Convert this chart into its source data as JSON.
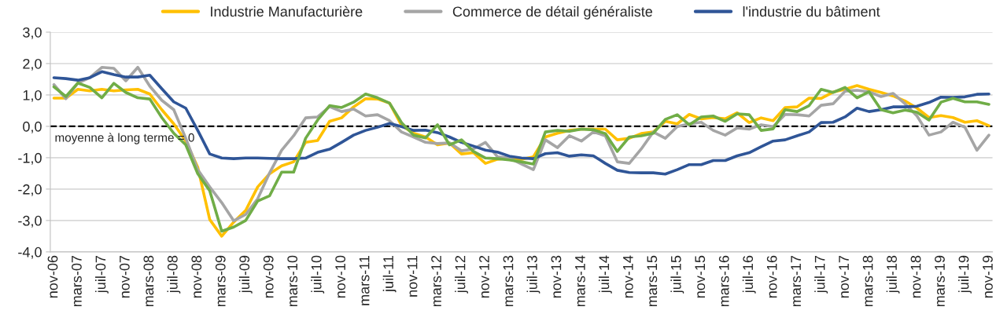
{
  "chart_data": {
    "type": "line",
    "categories": [
      "nov-06",
      null,
      "mars-07",
      null,
      "juil-07",
      null,
      "nov-07",
      null,
      "mars-08",
      null,
      "juil-08",
      null,
      "nov-08",
      null,
      "mars-09",
      null,
      "juil-09",
      null,
      "nov-09",
      null,
      "mars-10",
      null,
      "juil-10",
      null,
      "nov-10",
      null,
      "mars-11",
      null,
      "juil-11",
      null,
      "nov-11",
      null,
      "mars-12",
      null,
      "juil-12",
      null,
      "nov-12",
      null,
      "mars-13",
      null,
      "juil-13",
      null,
      "nov-13",
      null,
      "mars-14",
      null,
      "juil-14",
      null,
      "nov-14",
      null,
      "mars-15",
      null,
      "juil-15",
      null,
      "nov-15",
      null,
      "mars-16",
      null,
      "juil-16",
      null,
      "nov-16",
      null,
      "mars-17",
      null,
      "juil-17",
      null,
      "nov-17",
      null,
      "mars-18",
      null,
      "juil-18",
      null,
      "nov-18",
      null,
      "mars-19",
      null,
      "juil-19",
      null,
      "nov-19"
    ],
    "series": [
      {
        "name": "Industrie Manufacturière",
        "color": "#ffc000",
        "values": [
          0.9,
          0.9,
          1.18,
          1.13,
          1.18,
          1.13,
          1.16,
          1.18,
          1.03,
          0.53,
          0.08,
          -0.47,
          -1.3,
          -2.97,
          -3.5,
          -3.05,
          -2.68,
          -1.93,
          -1.51,
          -1.26,
          -1.13,
          -0.51,
          -0.45,
          0.16,
          0.27,
          0.62,
          0.88,
          0.87,
          0.74,
          0.03,
          -0.22,
          -0.34,
          -0.59,
          -0.53,
          -0.88,
          -0.84,
          -1.18,
          -1.05,
          -1.01,
          -1.05,
          -0.97,
          -0.34,
          -0.22,
          -0.13,
          -0.09,
          -0.09,
          -0.09,
          -0.43,
          -0.38,
          -0.23,
          -0.18,
          0.16,
          0.08,
          0.38,
          0.24,
          0.28,
          0.24,
          0.43,
          0.12,
          0.27,
          0.18,
          0.6,
          0.62,
          0.9,
          0.89,
          1.09,
          1.18,
          1.3,
          1.18,
          1.08,
          0.97,
          0.81,
          0.58,
          0.28,
          0.34,
          0.28,
          0.13,
          0.18,
          0.02
        ]
      },
      {
        "name": "Commerce de détail généraliste",
        "color": "#a5a5a5",
        "values": [
          1.33,
          0.88,
          1.38,
          1.55,
          1.88,
          1.85,
          1.45,
          1.88,
          1.28,
          0.83,
          0.53,
          -0.38,
          -1.38,
          -1.93,
          -2.43,
          -3.01,
          -2.81,
          -2.31,
          -1.48,
          -0.76,
          -0.3,
          0.27,
          0.3,
          0.63,
          0.47,
          0.55,
          0.33,
          0.37,
          0.18,
          -0.18,
          -0.34,
          -0.51,
          -0.55,
          -0.53,
          -0.78,
          -0.72,
          -0.51,
          -0.97,
          -1.01,
          -1.2,
          -1.38,
          -0.43,
          -0.68,
          -0.3,
          -0.47,
          -0.18,
          -0.3,
          -1.13,
          -1.18,
          -0.72,
          -0.18,
          -0.38,
          -0.01,
          0.08,
          0.13,
          -0.13,
          -0.28,
          -0.05,
          -0.09,
          0.05,
          -0.01,
          0.38,
          0.37,
          0.33,
          0.67,
          0.72,
          1.12,
          1.15,
          1.1,
          0.95,
          1.05,
          0.72,
          0.33,
          -0.28,
          -0.18,
          0.13,
          -0.03,
          -0.76,
          -0.28
        ]
      },
      {
        "name": "l'industrie du bâtiment",
        "color": "#2f5597",
        "values": [
          1.55,
          1.52,
          1.47,
          1.55,
          1.74,
          1.65,
          1.57,
          1.57,
          1.63,
          1.2,
          0.78,
          0.58,
          -0.13,
          -0.88,
          -1.01,
          -1.03,
          -1.01,
          -1.01,
          -1.02,
          -1.03,
          -1.03,
          -1.01,
          -0.83,
          -0.73,
          -0.51,
          -0.28,
          -0.13,
          -0.03,
          0.09,
          -0.01,
          -0.13,
          -0.12,
          -0.2,
          -0.34,
          -0.51,
          -0.63,
          -0.76,
          -0.82,
          -0.95,
          -1.01,
          -1.03,
          -0.87,
          -0.84,
          -0.95,
          -0.91,
          -0.94,
          -1.18,
          -1.4,
          -1.47,
          -1.48,
          -1.48,
          -1.52,
          -1.38,
          -1.22,
          -1.22,
          -1.09,
          -1.09,
          -0.94,
          -0.84,
          -0.65,
          -0.47,
          -0.43,
          -0.3,
          -0.18,
          0.12,
          0.13,
          0.3,
          0.58,
          0.47,
          0.53,
          0.62,
          0.62,
          0.64,
          0.76,
          0.93,
          0.92,
          0.94,
          1.02,
          1.03
        ]
      },
      {
        "color": "#70ad47",
        "values": [
          1.26,
          0.95,
          1.38,
          1.24,
          0.91,
          1.37,
          1.08,
          0.91,
          0.87,
          0.28,
          -0.22,
          -0.59,
          -1.51,
          -2.05,
          -3.34,
          -3.21,
          -3.0,
          -2.38,
          -2.21,
          -1.46,
          -1.46,
          -0.38,
          0.2,
          0.66,
          0.6,
          0.77,
          1.03,
          0.91,
          0.74,
          0.12,
          -0.28,
          -0.37,
          0.05,
          -0.59,
          -0.43,
          -0.8,
          -1.01,
          -1.03,
          -1.07,
          -1.13,
          -1.2,
          -0.18,
          -0.13,
          -0.16,
          -0.09,
          -0.11,
          -0.23,
          -0.8,
          -0.34,
          -0.3,
          -0.22,
          0.22,
          0.37,
          0.05,
          0.3,
          0.33,
          0.16,
          0.4,
          0.37,
          -0.13,
          -0.08,
          0.53,
          0.47,
          0.66,
          1.18,
          1.08,
          1.24,
          0.91,
          1.1,
          0.53,
          0.43,
          0.52,
          0.45,
          0.2,
          0.77,
          0.89,
          0.78,
          0.78,
          0.7
        ]
      }
    ],
    "ylim": [
      -4,
      3
    ],
    "yticks": [
      {
        "value": -4,
        "label": "-4,0"
      },
      {
        "value": -3,
        "label": "-3,0"
      },
      {
        "value": -2,
        "label": "-2,0"
      },
      {
        "value": -1,
        "label": "-1,0"
      },
      {
        "value": 0,
        "label": "0,0"
      },
      {
        "value": 1,
        "label": "1,0"
      },
      {
        "value": 2,
        "label": "2,0"
      },
      {
        "value": 3,
        "label": "3,0"
      }
    ],
    "ref_lines": [
      {
        "axis": "y",
        "value": 0,
        "label": "moyenne à long terme = 0",
        "color": "#000000",
        "line_style": "dashed"
      }
    ],
    "grid": "y",
    "legend": "top",
    "marker": "none",
    "line_style": "solid"
  }
}
